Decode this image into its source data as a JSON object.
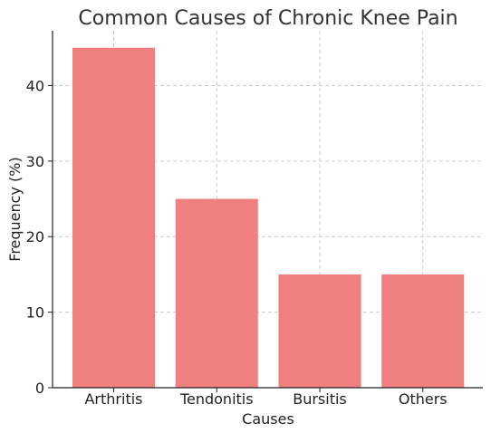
{
  "chart_data": {
    "type": "bar",
    "title": "Common Causes of Chronic Knee Pain",
    "xlabel": "Causes",
    "ylabel": "Frequency (%)",
    "categories": [
      "Arthritis",
      "Tendonitis",
      "Bursitis",
      "Others"
    ],
    "values": [
      45,
      25,
      15,
      15
    ],
    "ylim": [
      0,
      47.25
    ],
    "yticks": [
      0,
      10,
      20,
      30,
      40
    ],
    "grid": true,
    "bar_color": "#f08080"
  }
}
